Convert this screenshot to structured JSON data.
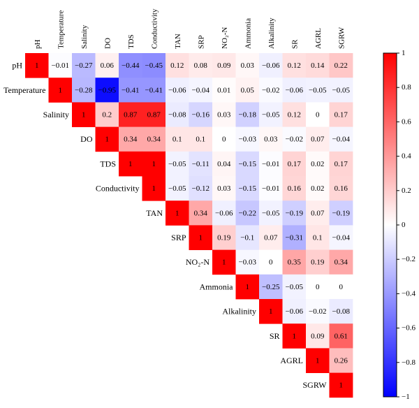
{
  "chart_data": {
    "type": "heatmap",
    "variables": [
      "pH",
      "Temperature",
      "Salinity",
      "DO",
      "TDS",
      "Conductivity",
      "TAN",
      "SRP",
      "NO₂-N",
      "Ammonia",
      "Alkalinity",
      "SR",
      "AGRL",
      "SGRW"
    ],
    "matrix_upper": [
      [
        1,
        -0.01,
        -0.27,
        0.06,
        -0.44,
        -0.45,
        0.12,
        0.08,
        0.09,
        0.03,
        -0.06,
        0.12,
        0.14,
        0.22
      ],
      [
        1,
        -0.28,
        -0.95,
        -0.41,
        -0.41,
        -0.06,
        -0.04,
        0.01,
        0.05,
        -0.02,
        -0.06,
        -0.05,
        -0.05
      ],
      [
        1,
        0.2,
        0.87,
        0.87,
        -0.08,
        -0.16,
        0.03,
        -0.18,
        -0.05,
        0.12,
        0,
        0.17
      ],
      [
        1,
        0.34,
        0.34,
        0.1,
        0.1,
        0,
        -0.03,
        0.03,
        -0.02,
        0.07,
        -0.04
      ],
      [
        1,
        1,
        -0.05,
        -0.11,
        0.04,
        -0.15,
        -0.01,
        0.17,
        0.02,
        0.17
      ],
      [
        1,
        -0.05,
        -0.12,
        0.03,
        -0.15,
        -0.01,
        0.16,
        0.02,
        0.16
      ],
      [
        1,
        0.34,
        -0.06,
        -0.22,
        -0.05,
        -0.19,
        0.07,
        -0.19
      ],
      [
        1,
        0.19,
        -0.1,
        0.07,
        -0.31,
        0.1,
        -0.04
      ],
      [
        1,
        -0.03,
        0,
        0.35,
        0.19,
        0.34
      ],
      [
        1,
        -0.25,
        -0.05,
        0,
        0
      ],
      [
        1,
        -0.06,
        -0.02,
        -0.08
      ],
      [
        1,
        0.09,
        0.61
      ],
      [
        1,
        0.26
      ],
      [
        1
      ]
    ],
    "colorbar": {
      "range": [
        -1,
        1
      ],
      "ticks": [
        "1",
        "0.8",
        "0.6",
        "0.4",
        "0.2",
        "0",
        "−0.2",
        "−0.4",
        "−0.6",
        "−0.8",
        "−1"
      ],
      "colors": {
        "positive": "#ff0000",
        "zero": "#ffffff",
        "negative": "#0000ff"
      }
    }
  }
}
